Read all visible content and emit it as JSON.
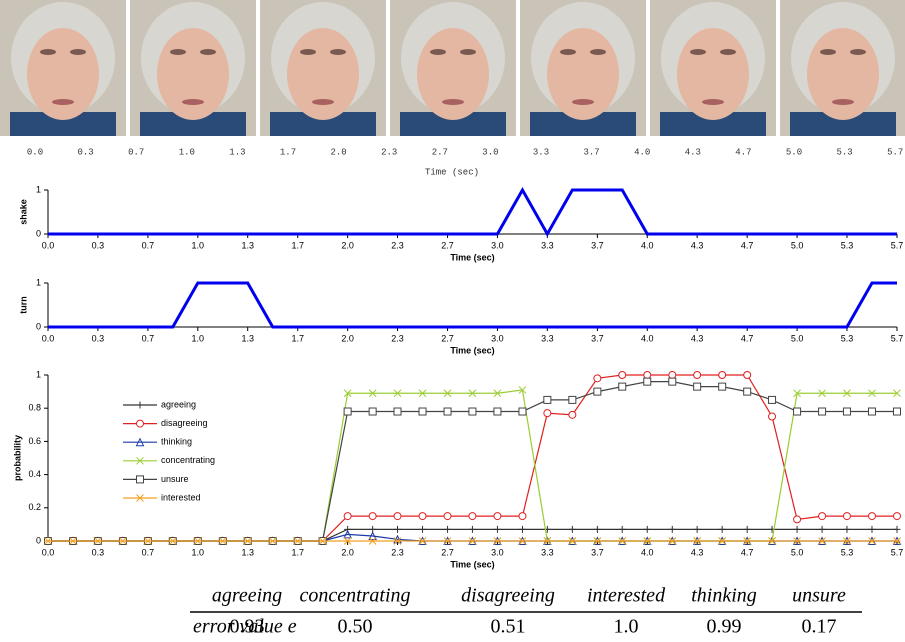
{
  "filmstrip": {
    "time_labels": [
      "0.0",
      "0.3",
      "0.7",
      "1.0",
      "1.3",
      "1.7",
      "2.0",
      "2.3",
      "2.7",
      "3.0",
      "3.3",
      "3.7",
      "4.0",
      "4.3",
      "4.7",
      "5.0",
      "5.3",
      "5.7"
    ],
    "axis_label": "Time (sec)"
  },
  "chart_data": [
    {
      "type": "line",
      "ylabel": "shake",
      "xlabel": "Time (sec)",
      "color": "#0000ee",
      "x": [
        0,
        3.0,
        3.167,
        3.333,
        3.5,
        3.833,
        4.0,
        5.667
      ],
      "values": [
        0,
        0,
        1,
        0,
        1,
        1,
        0,
        0
      ],
      "xlim": [
        0,
        5.667
      ],
      "ylim": [
        0,
        1
      ],
      "yticks": [
        0,
        1
      ],
      "xticks": [
        {
          "value": 0,
          "label": "0.0"
        },
        {
          "value": 0.333,
          "label": "0.3"
        },
        {
          "value": 0.667,
          "label": "0.7"
        },
        {
          "value": 1,
          "label": "1.0"
        },
        {
          "value": 1.333,
          "label": "1.3"
        },
        {
          "value": 1.667,
          "label": "1.7"
        },
        {
          "value": 2,
          "label": "2.0"
        },
        {
          "value": 2.333,
          "label": "2.3"
        },
        {
          "value": 2.667,
          "label": "2.7"
        },
        {
          "value": 3,
          "label": "3.0"
        },
        {
          "value": 3.333,
          "label": "3.3"
        },
        {
          "value": 3.667,
          "label": "3.7"
        },
        {
          "value": 4,
          "label": "4.0"
        },
        {
          "value": 4.333,
          "label": "4.3"
        },
        {
          "value": 4.667,
          "label": "4.7"
        },
        {
          "value": 5,
          "label": "5.0"
        },
        {
          "value": 5.333,
          "label": "5.3"
        },
        {
          "value": 5.667,
          "label": "5.7"
        }
      ]
    },
    {
      "type": "line",
      "ylabel": "turn",
      "xlabel": "Time (sec)",
      "color": "#0000ee",
      "x": [
        0,
        0.833,
        1.0,
        1.333,
        1.5,
        5.333,
        5.5,
        5.667
      ],
      "values": [
        0,
        0,
        1,
        1,
        0,
        0,
        1,
        1
      ],
      "xlim": [
        0,
        5.667
      ],
      "ylim": [
        0,
        1
      ],
      "yticks": [
        0,
        1
      ],
      "xticks": [
        {
          "value": 0,
          "label": "0.0"
        },
        {
          "value": 0.333,
          "label": "0.3"
        },
        {
          "value": 0.667,
          "label": "0.7"
        },
        {
          "value": 1,
          "label": "1.0"
        },
        {
          "value": 1.333,
          "label": "1.3"
        },
        {
          "value": 1.667,
          "label": "1.7"
        },
        {
          "value": 2,
          "label": "2.0"
        },
        {
          "value": 2.333,
          "label": "2.3"
        },
        {
          "value": 2.667,
          "label": "2.7"
        },
        {
          "value": 3,
          "label": "3.0"
        },
        {
          "value": 3.333,
          "label": "3.3"
        },
        {
          "value": 3.667,
          "label": "3.7"
        },
        {
          "value": 4,
          "label": "4.0"
        },
        {
          "value": 4.333,
          "label": "4.3"
        },
        {
          "value": 4.667,
          "label": "4.7"
        },
        {
          "value": 5,
          "label": "5.0"
        },
        {
          "value": 5.333,
          "label": "5.3"
        },
        {
          "value": 5.667,
          "label": "5.7"
        }
      ]
    },
    {
      "type": "line",
      "ylabel": "probability",
      "xlabel": "Time (sec)",
      "legend": "upper left",
      "x": [
        0,
        0.167,
        0.333,
        0.5,
        0.667,
        0.833,
        1,
        1.167,
        1.333,
        1.5,
        1.667,
        1.833,
        2,
        2.167,
        2.333,
        2.5,
        2.667,
        2.833,
        3,
        3.167,
        3.333,
        3.5,
        3.667,
        3.833,
        4,
        4.167,
        4.333,
        4.5,
        4.667,
        4.833,
        5,
        5.167,
        5.333,
        5.5,
        5.667
      ],
      "series": [
        {
          "name": "agreeing",
          "color": "#333333",
          "marker": "plus",
          "values": [
            0,
            0,
            0,
            0,
            0,
            0,
            0,
            0,
            0,
            0,
            0,
            0,
            0.07,
            0.07,
            0.07,
            0.07,
            0.07,
            0.07,
            0.07,
            0.07,
            0.07,
            0.07,
            0.07,
            0.07,
            0.07,
            0.07,
            0.07,
            0.07,
            0.07,
            0.07,
            0.07,
            0.07,
            0.07,
            0.07,
            0.07
          ]
        },
        {
          "name": "disagreeing",
          "color": "#e02020",
          "marker": "circle",
          "values": [
            0,
            0,
            0,
            0,
            0,
            0,
            0,
            0,
            0,
            0,
            0,
            0,
            0.15,
            0.15,
            0.15,
            0.15,
            0.15,
            0.15,
            0.15,
            0.15,
            0.77,
            0.76,
            0.98,
            1,
            1,
            1,
            1,
            1,
            1,
            0.75,
            0.13,
            0.15,
            0.15,
            0.15,
            0.15
          ]
        },
        {
          "name": "thinking",
          "color": "#1a3aa8",
          "marker": "triangle",
          "values": [
            0,
            0,
            0,
            0,
            0,
            0,
            0,
            0,
            0,
            0,
            0,
            0,
            0.04,
            0.03,
            0.01,
            0,
            0,
            0,
            0,
            0,
            0,
            0,
            0,
            0,
            0,
            0,
            0,
            0,
            0,
            0,
            0,
            0,
            0,
            0,
            0
          ]
        },
        {
          "name": "concentrating",
          "color": "#9acd32",
          "marker": "x",
          "values": [
            0,
            0,
            0,
            0,
            0,
            0,
            0,
            0,
            0,
            0,
            0,
            0,
            0.89,
            0.89,
            0.89,
            0.89,
            0.89,
            0.89,
            0.89,
            0.91,
            0,
            0,
            0,
            0,
            0,
            0,
            0,
            0,
            0,
            0,
            0.89,
            0.89,
            0.89,
            0.89,
            0.89
          ]
        },
        {
          "name": "unsure",
          "color": "#444444",
          "marker": "square",
          "values": [
            0,
            0,
            0,
            0,
            0,
            0,
            0,
            0,
            0,
            0,
            0,
            0,
            0.78,
            0.78,
            0.78,
            0.78,
            0.78,
            0.78,
            0.78,
            0.78,
            0.85,
            0.85,
            0.9,
            0.93,
            0.96,
            0.96,
            0.93,
            0.93,
            0.9,
            0.85,
            0.78,
            0.78,
            0.78,
            0.78,
            0.78
          ]
        },
        {
          "name": "interested",
          "color": "#f0a020",
          "marker": "asterisk",
          "values": [
            0,
            0,
            0,
            0,
            0,
            0,
            0,
            0,
            0,
            0,
            0,
            0,
            0,
            0,
            0,
            0,
            0,
            0,
            0,
            0,
            0,
            0,
            0,
            0,
            0,
            0,
            0,
            0,
            0,
            0,
            0,
            0,
            0,
            0,
            0
          ]
        }
      ],
      "xlim": [
        0,
        5.667
      ],
      "ylim": [
        0,
        1
      ],
      "yticks": [
        0,
        0.2,
        0.4,
        0.6,
        0.8,
        1
      ],
      "xticks": [
        {
          "value": 0,
          "label": "0.0"
        },
        {
          "value": 0.333,
          "label": "0.3"
        },
        {
          "value": 0.667,
          "label": "0.7"
        },
        {
          "value": 1,
          "label": "1.0"
        },
        {
          "value": 1.333,
          "label": "1.3"
        },
        {
          "value": 1.667,
          "label": "1.7"
        },
        {
          "value": 2,
          "label": "2.0"
        },
        {
          "value": 2.333,
          "label": "2.3"
        },
        {
          "value": 2.667,
          "label": "2.7"
        },
        {
          "value": 3,
          "label": "3.0"
        },
        {
          "value": 3.333,
          "label": "3.3"
        },
        {
          "value": 3.667,
          "label": "3.7"
        },
        {
          "value": 4,
          "label": "4.0"
        },
        {
          "value": 4.333,
          "label": "4.3"
        },
        {
          "value": 4.667,
          "label": "4.7"
        },
        {
          "value": 5,
          "label": "5.0"
        },
        {
          "value": 5.333,
          "label": "5.3"
        },
        {
          "value": 5.667,
          "label": "5.7"
        }
      ]
    }
  ],
  "table": {
    "columns": [
      "agreeing",
      "concentrating",
      "disagreeing",
      "interested",
      "thinking",
      "unsure"
    ],
    "row_label": "error value e",
    "values": [
      "0.93",
      "0.50",
      "0.51",
      "1.0",
      "0.99",
      "0.17"
    ]
  }
}
